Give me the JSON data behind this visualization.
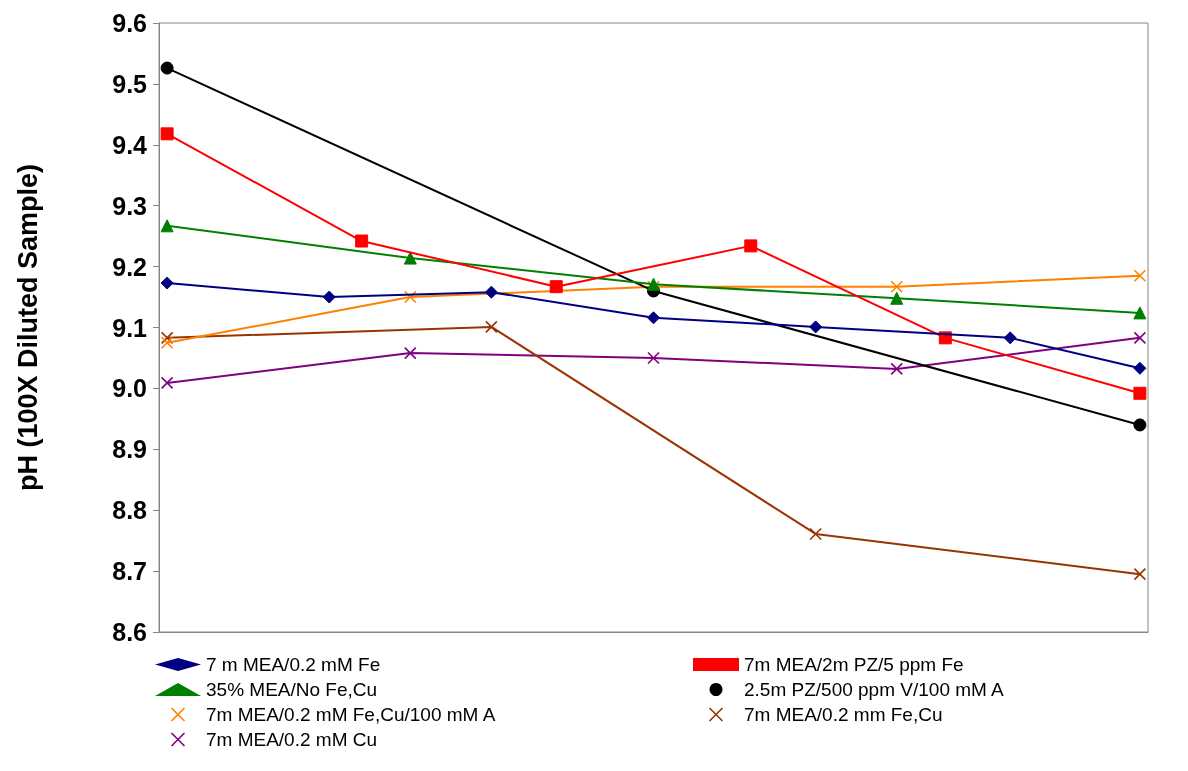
{
  "chart_data": {
    "type": "line",
    "ylabel": "pH (100X Diluted Sample)",
    "categories": [
      null,
      null,
      null,
      null,
      null,
      null,
      null,
      null,
      null,
      null,
      null,
      null,
      null,
      null,
      null,
      null,
      null,
      null,
      null,
      null,
      null,
      null,
      null,
      null,
      null,
      null,
      null,
      null,
      null,
      null,
      null,
      null,
      null,
      null,
      null,
      null,
      null,
      null,
      null,
      null,
      null,
      null,
      null,
      null,
      null,
      null,
      null,
      null,
      null,
      null,
      null,
      null,
      null,
      null,
      null,
      null,
      null,
      null,
      null,
      null,
      null
    ],
    "ylim": [
      8.6,
      9.6
    ],
    "yticks": [
      {
        "value": 8.6,
        "label": "8.6"
      },
      {
        "value": 8.7,
        "label": "8.7"
      },
      {
        "value": 8.8,
        "label": "8.8"
      },
      {
        "value": 8.9,
        "label": "8.9"
      },
      {
        "value": 9,
        "label": "9.0"
      },
      {
        "value": 9.1,
        "label": "9.1"
      },
      {
        "value": 9.2,
        "label": "9.2"
      },
      {
        "value": 9.3,
        "label": "9.3"
      },
      {
        "value": 9.4,
        "label": "9.4"
      },
      {
        "value": 9.5,
        "label": "9.5"
      },
      {
        "value": 9.6,
        "label": "9.6"
      }
    ],
    "tick_labels": "y",
    "grid": false,
    "legend": "bottom",
    "line_style": "solid",
    "series": [
      {
        "name": "7 m MEA/0.2 mM Fe",
        "color": "#000080",
        "marker": "diamond",
        "values": [
          9.173,
          null,
          null,
          null,
          null,
          null,
          null,
          null,
          null,
          null,
          9.15,
          null,
          null,
          null,
          null,
          null,
          null,
          null,
          null,
          null,
          9.158,
          null,
          null,
          null,
          null,
          null,
          null,
          null,
          null,
          null,
          9.116,
          null,
          null,
          null,
          null,
          null,
          null,
          null,
          null,
          null,
          9.101,
          null,
          null,
          null,
          null,
          null,
          null,
          null,
          null,
          null,
          null,
          null,
          9.083,
          null,
          null,
          null,
          null,
          null,
          null,
          null,
          9.033
        ]
      },
      {
        "name": "7m MEA/2m PZ/5 ppm Fe",
        "color": "#ff0000",
        "marker": "square",
        "values": [
          9.418,
          null,
          null,
          null,
          null,
          null,
          null,
          null,
          null,
          null,
          null,
          null,
          9.242,
          null,
          null,
          null,
          null,
          null,
          null,
          null,
          null,
          null,
          null,
          null,
          9.167,
          null,
          null,
          null,
          null,
          null,
          null,
          null,
          null,
          null,
          null,
          null,
          9.234,
          null,
          null,
          null,
          null,
          null,
          null,
          null,
          null,
          null,
          null,
          null,
          9.083,
          null,
          null,
          null,
          null,
          null,
          null,
          null,
          null,
          null,
          null,
          null,
          8.992
        ]
      },
      {
        "name": "35% MEA/No Fe,Cu",
        "color": "#008000",
        "marker": "triangle",
        "values": [
          9.267,
          null,
          null,
          null,
          null,
          null,
          null,
          null,
          null,
          null,
          null,
          null,
          null,
          null,
          null,
          9.214,
          null,
          null,
          null,
          null,
          null,
          null,
          null,
          null,
          null,
          null,
          null,
          null,
          null,
          null,
          9.171,
          null,
          null,
          null,
          null,
          null,
          null,
          null,
          null,
          null,
          null,
          null,
          null,
          null,
          null,
          9.148,
          null,
          null,
          null,
          null,
          null,
          null,
          null,
          null,
          null,
          null,
          null,
          null,
          null,
          null,
          9.124
        ]
      },
      {
        "name": "2.5m PZ/500 ppm V/100 mM A",
        "color": "#000000",
        "marker": "circle",
        "values": [
          9.526,
          null,
          null,
          null,
          null,
          null,
          null,
          null,
          null,
          null,
          null,
          null,
          null,
          null,
          null,
          null,
          null,
          null,
          null,
          null,
          null,
          null,
          null,
          null,
          null,
          null,
          null,
          null,
          null,
          null,
          9.16,
          null,
          null,
          null,
          null,
          null,
          null,
          null,
          null,
          null,
          null,
          null,
          null,
          null,
          null,
          null,
          null,
          null,
          null,
          null,
          null,
          null,
          null,
          null,
          null,
          null,
          null,
          null,
          null,
          null,
          8.94
        ]
      },
      {
        "name": "7m MEA/0.2 mM Fe,Cu/100 mM A",
        "color": "#ff8000",
        "marker": "cross",
        "values": [
          9.075,
          null,
          null,
          null,
          null,
          null,
          null,
          null,
          null,
          null,
          null,
          null,
          null,
          null,
          null,
          9.15,
          null,
          null,
          null,
          null,
          null,
          null,
          null,
          null,
          null,
          null,
          null,
          null,
          null,
          null,
          9.167,
          null,
          null,
          null,
          null,
          null,
          null,
          null,
          null,
          null,
          null,
          null,
          null,
          null,
          null,
          9.167,
          null,
          null,
          null,
          null,
          null,
          null,
          null,
          null,
          null,
          null,
          null,
          null,
          null,
          null,
          9.185
        ]
      },
      {
        "name": "7m MEA/0.2 mm Fe,Cu",
        "color": "#993300",
        "marker": "cross",
        "values": [
          9.083,
          null,
          null,
          null,
          null,
          null,
          null,
          null,
          null,
          null,
          null,
          null,
          null,
          null,
          null,
          null,
          null,
          null,
          null,
          null,
          9.101,
          null,
          null,
          null,
          null,
          null,
          null,
          null,
          null,
          null,
          null,
          null,
          null,
          null,
          null,
          null,
          null,
          null,
          null,
          null,
          8.761,
          null,
          null,
          null,
          null,
          null,
          null,
          null,
          null,
          null,
          null,
          null,
          null,
          null,
          null,
          null,
          null,
          null,
          null,
          null,
          8.695
        ]
      },
      {
        "name": "7m MEA/0.2 mM Cu",
        "color": "#800080",
        "marker": "cross",
        "values": [
          9.009,
          null,
          null,
          null,
          null,
          null,
          null,
          null,
          null,
          null,
          null,
          null,
          null,
          null,
          null,
          9.058,
          null,
          null,
          null,
          null,
          null,
          null,
          null,
          null,
          null,
          null,
          null,
          null,
          null,
          null,
          9.05,
          null,
          null,
          null,
          null,
          null,
          null,
          null,
          null,
          null,
          null,
          null,
          null,
          null,
          null,
          9.032,
          null,
          null,
          null,
          null,
          null,
          null,
          null,
          null,
          null,
          null,
          null,
          null,
          null,
          null,
          9.083
        ]
      }
    ]
  }
}
